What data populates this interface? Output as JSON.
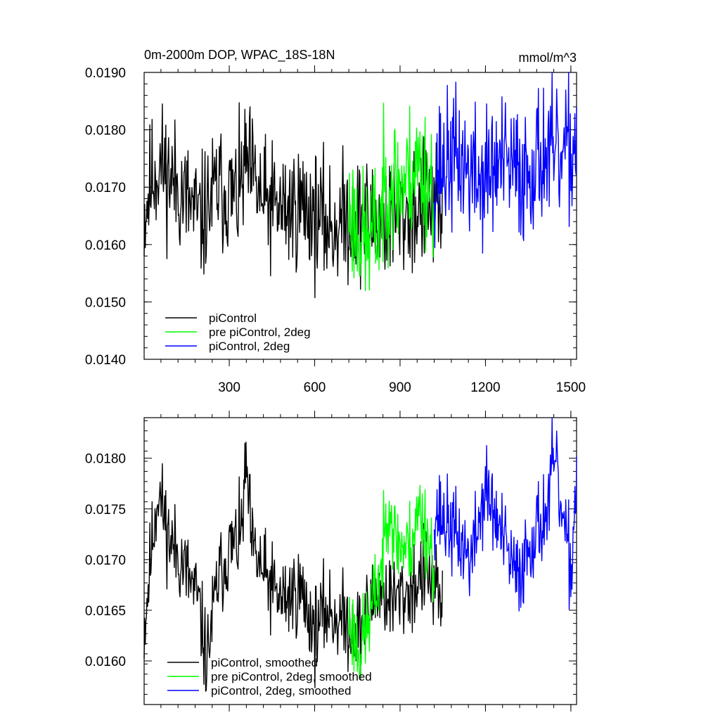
{
  "figure": {
    "title_left": "0m-2000m DOP, WPAC_18S-18N",
    "title_right": "mmol/m^3"
  },
  "chart_data": [
    {
      "type": "line",
      "panel": "top",
      "xlim": [
        1,
        1520
      ],
      "ylim": [
        0.014,
        0.019
      ],
      "xticks": [
        300,
        600,
        900,
        1200,
        1500
      ],
      "xtick_labels": [
        "300",
        "600",
        "900",
        "1200",
        "1500"
      ],
      "yticks": [
        0.014,
        0.015,
        0.016,
        0.017,
        0.018,
        0.019
      ],
      "ytick_labels": [
        "0.0140",
        "0.0150",
        "0.0160",
        "0.0170",
        "0.0180",
        "0.0190"
      ],
      "legend_position": "bottom-left",
      "series": [
        {
          "name": "piControl",
          "color": "#000000",
          "x_start": 1,
          "x_end": 1050,
          "seed": 11,
          "noise": 0.00055,
          "anchors": [
            [
              1,
              0.0165
            ],
            [
              30,
              0.0172
            ],
            [
              60,
              0.0174
            ],
            [
              120,
              0.017
            ],
            [
              200,
              0.0164
            ],
            [
              260,
              0.017
            ],
            [
              330,
              0.0168
            ],
            [
              360,
              0.0174
            ],
            [
              420,
              0.0167
            ],
            [
              500,
              0.0166
            ],
            [
              560,
              0.0167
            ],
            [
              600,
              0.0165
            ],
            [
              660,
              0.0163
            ],
            [
              720,
              0.0165
            ],
            [
              800,
              0.0164
            ],
            [
              900,
              0.0165
            ],
            [
              1000,
              0.0167
            ],
            [
              1050,
              0.0164
            ]
          ]
        },
        {
          "name": "pre piControl, 2deg",
          "color": "#00ff00",
          "x_start": 720,
          "x_end": 1020,
          "seed": 23,
          "noise": 0.0006,
          "anchors": [
            [
              720,
              0.0166
            ],
            [
              780,
              0.016
            ],
            [
              820,
              0.0163
            ],
            [
              860,
              0.0172
            ],
            [
              900,
              0.017
            ],
            [
              960,
              0.0174
            ],
            [
              1020,
              0.017
            ]
          ]
        },
        {
          "name": "piControl, 2deg",
          "color": "#0000ff",
          "x_start": 1020,
          "x_end": 1520,
          "seed": 37,
          "noise": 0.0006,
          "anchors": [
            [
              1020,
              0.0173
            ],
            [
              1100,
              0.0175
            ],
            [
              1180,
              0.0171
            ],
            [
              1250,
              0.0174
            ],
            [
              1330,
              0.0172
            ],
            [
              1400,
              0.0176
            ],
            [
              1460,
              0.0174
            ],
            [
              1520,
              0.0178
            ]
          ]
        }
      ]
    },
    {
      "type": "line",
      "panel": "bottom",
      "xlim": [
        1,
        1520
      ],
      "ylim": [
        0.01557,
        0.0184
      ],
      "xticks": [
        300,
        600,
        900,
        1200,
        1500
      ],
      "xtick_labels": [
        "",
        "",
        "",
        "",
        ""
      ],
      "yticks": [
        0.016,
        0.0165,
        0.017,
        0.0175,
        0.018
      ],
      "ytick_labels": [
        "0.0160",
        "0.0165",
        "0.0170",
        "0.0175",
        "0.0180"
      ],
      "legend_position": "bottom-left",
      "series": [
        {
          "name": "piControl, smoothed",
          "color": "#000000",
          "x_start": 1,
          "x_end": 1050,
          "seed": 11,
          "noise": 0.00022,
          "anchors": [
            [
              1,
              0.0163
            ],
            [
              30,
              0.0172
            ],
            [
              50,
              0.0177
            ],
            [
              90,
              0.0172
            ],
            [
              130,
              0.017
            ],
            [
              190,
              0.0166
            ],
            [
              220,
              0.016
            ],
            [
              260,
              0.0168
            ],
            [
              300,
              0.0171
            ],
            [
              340,
              0.0172
            ],
            [
              360,
              0.0179
            ],
            [
              380,
              0.0171
            ],
            [
              430,
              0.0168
            ],
            [
              480,
              0.0166
            ],
            [
              550,
              0.0167
            ],
            [
              600,
              0.0163
            ],
            [
              640,
              0.0165
            ],
            [
              700,
              0.0164
            ],
            [
              760,
              0.0163
            ],
            [
              820,
              0.0167
            ],
            [
              880,
              0.0166
            ],
            [
              940,
              0.0167
            ],
            [
              990,
              0.0169
            ],
            [
              1050,
              0.0165
            ]
          ]
        },
        {
          "name": "pre piControl, 2deg, smoothed",
          "color": "#00ff00",
          "x_start": 720,
          "x_end": 1020,
          "seed": 23,
          "noise": 0.00022,
          "anchors": [
            [
              720,
              0.0164
            ],
            [
              760,
              0.0161
            ],
            [
              800,
              0.0165
            ],
            [
              840,
              0.017
            ],
            [
              860,
              0.0177
            ],
            [
              880,
              0.0172
            ],
            [
              930,
              0.0171
            ],
            [
              970,
              0.0175
            ],
            [
              1000,
              0.0172
            ],
            [
              1020,
              0.017
            ]
          ]
        },
        {
          "name": "piControl, 2deg, smoothed",
          "color": "#0000ff",
          "x_start": 1020,
          "x_end": 1520,
          "seed": 37,
          "noise": 0.00022,
          "anchors": [
            [
              1020,
              0.0175
            ],
            [
              1080,
              0.0173
            ],
            [
              1150,
              0.017
            ],
            [
              1200,
              0.0177
            ],
            [
              1260,
              0.0172
            ],
            [
              1310,
              0.0168
            ],
            [
              1360,
              0.0172
            ],
            [
              1420,
              0.0175
            ],
            [
              1440,
              0.018
            ],
            [
              1480,
              0.0172
            ],
            [
              1500,
              0.0169
            ],
            [
              1520,
              0.0178
            ]
          ]
        }
      ]
    }
  ]
}
